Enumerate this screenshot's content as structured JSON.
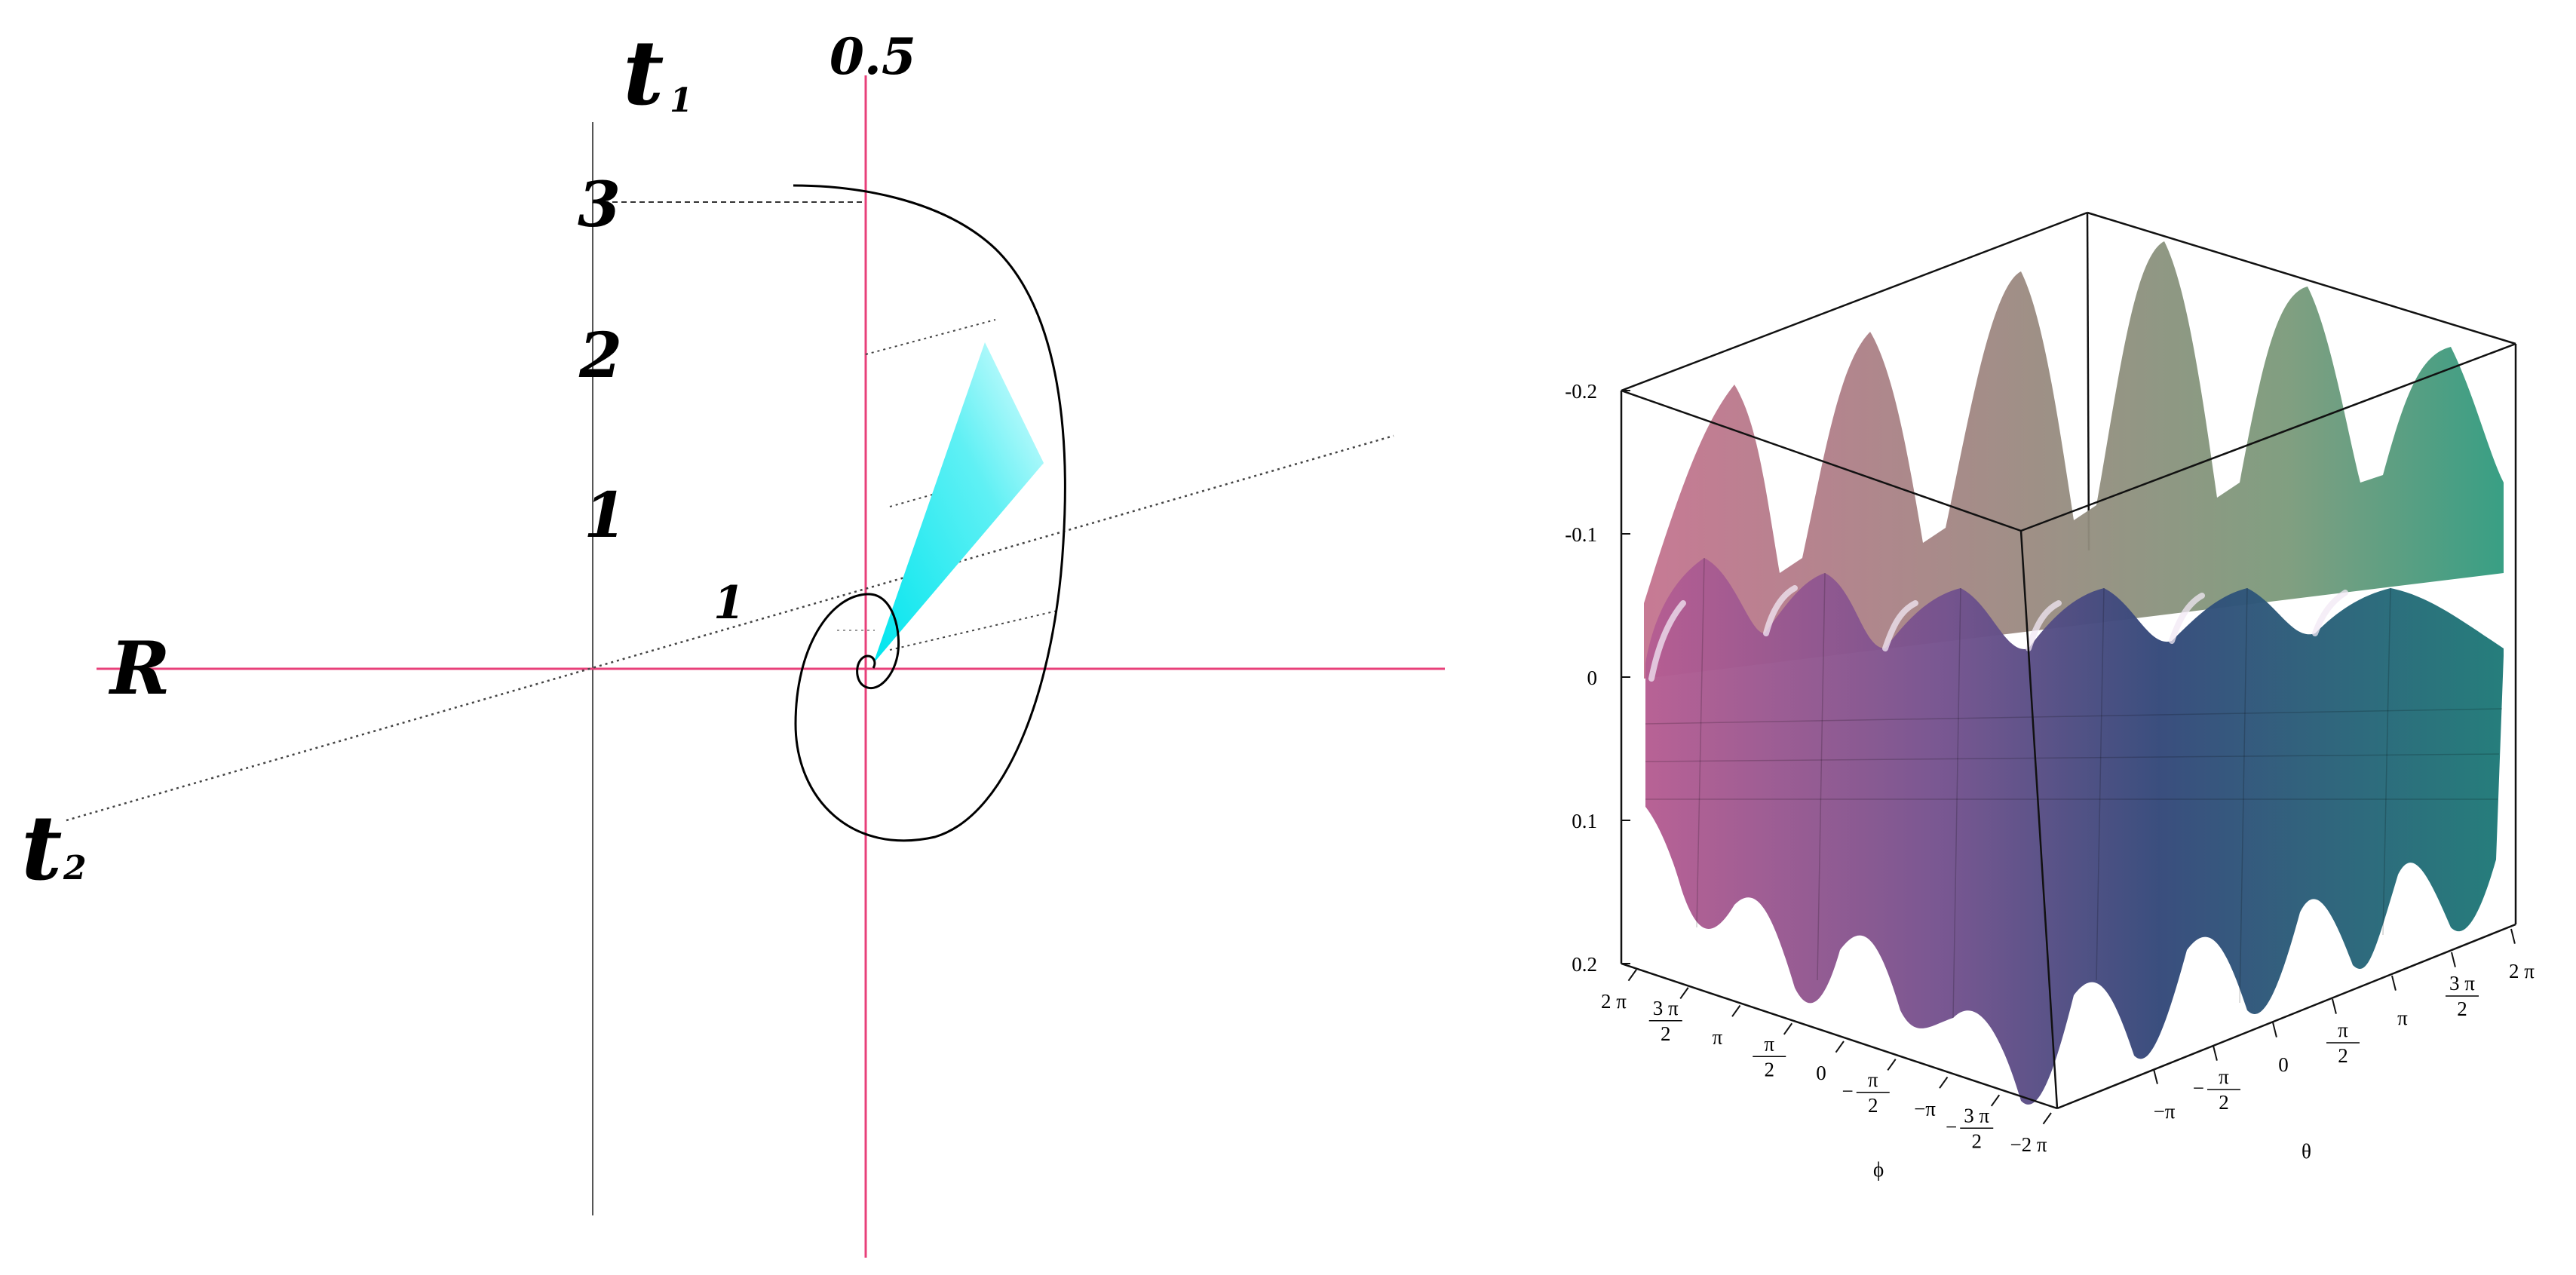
{
  "left_diagram": {
    "title_top": "0.5",
    "axis_t1": {
      "main": "t",
      "sub": "1"
    },
    "axis_t2": {
      "main": "t",
      "sub": "2"
    },
    "axis_R": "R",
    "t1_ticks": [
      "1",
      "2",
      "3"
    ],
    "t2_tick": "1",
    "colors": {
      "magenta_axis": "#e8407a",
      "cyan_fill": "#00e6ee",
      "curve": "#000000"
    }
  },
  "surface_plot": {
    "z_ticks": [
      "-0.2",
      "-0.1",
      "0",
      "0.1",
      "0.2"
    ],
    "phi_label": "ϕ",
    "theta_label": "θ",
    "phi_ticks": [
      {
        "pre": "",
        "num": "",
        "den": "",
        "post": "2 π"
      },
      {
        "pre": "",
        "num": "3 π",
        "den": "2",
        "post": ""
      },
      {
        "pre": "",
        "num": "",
        "den": "",
        "post": "π"
      },
      {
        "pre": "",
        "num": "π",
        "den": "2",
        "post": ""
      },
      {
        "pre": "",
        "num": "",
        "den": "",
        "post": "0"
      },
      {
        "pre": "−",
        "num": "π",
        "den": "2",
        "post": ""
      },
      {
        "pre": "",
        "num": "",
        "den": "",
        "post": "−π"
      },
      {
        "pre": "−",
        "num": "3 π",
        "den": "2",
        "post": ""
      },
      {
        "pre": "",
        "num": "",
        "den": "",
        "post": "−2 π"
      }
    ],
    "theta_ticks": [
      {
        "pre": "",
        "num": "",
        "den": "",
        "post": "−π"
      },
      {
        "pre": "−",
        "num": "π",
        "den": "2",
        "post": ""
      },
      {
        "pre": "",
        "num": "",
        "den": "",
        "post": "0"
      },
      {
        "pre": "",
        "num": "π",
        "den": "2",
        "post": ""
      },
      {
        "pre": "",
        "num": "",
        "den": "",
        "post": "π"
      },
      {
        "pre": "",
        "num": "3 π",
        "den": "2",
        "post": ""
      },
      {
        "pre": "",
        "num": "",
        "den": "",
        "post": "2 π"
      }
    ]
  }
}
